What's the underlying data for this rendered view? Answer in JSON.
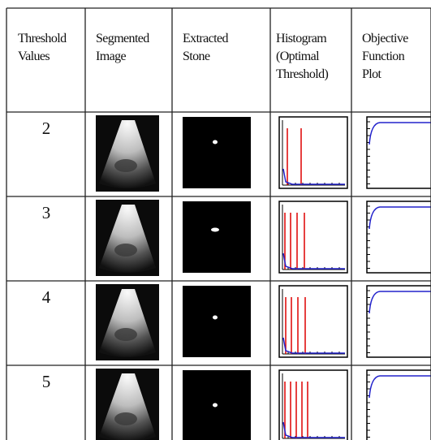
{
  "table": {
    "header": [
      [
        "Threshold",
        "Values"
      ],
      [
        "Segmented",
        "Image"
      ],
      [
        "Extracted",
        "Stone"
      ],
      [
        "Histogram",
        "(Optimal",
        "Threshold)"
      ],
      [
        "Objective",
        "Function",
        "Plot"
      ]
    ],
    "rows": [
      [
        2
      ],
      [
        3
      ],
      [
        4
      ],
      [
        5
      ]
    ]
  }
}
